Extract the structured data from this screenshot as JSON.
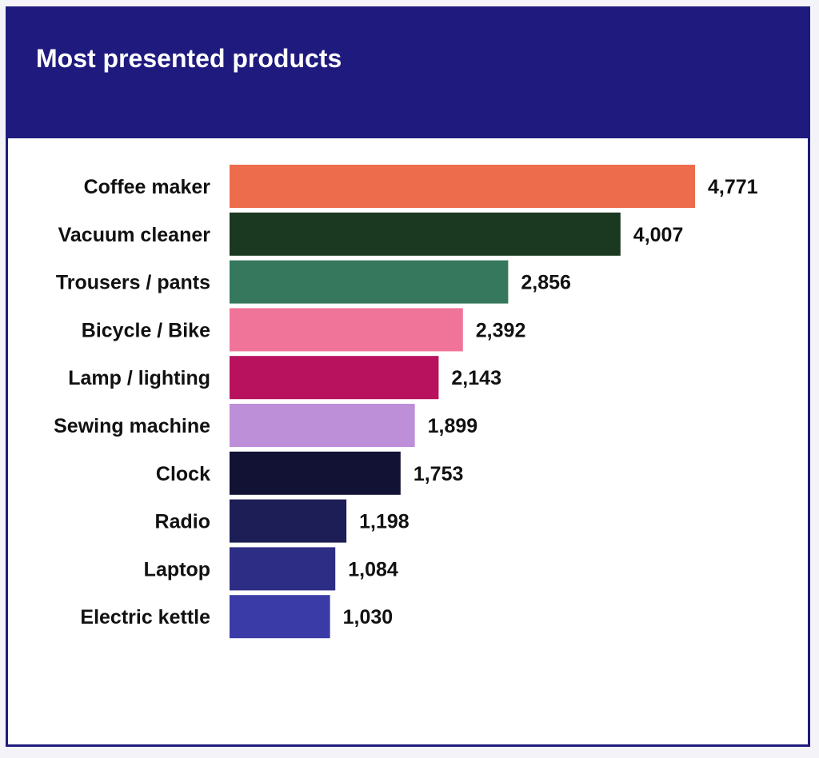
{
  "header": {
    "title": "Most presented products"
  },
  "colors": {
    "header_bg": "#1f1a7e",
    "card_bg": "#ffffff"
  },
  "chart_data": {
    "type": "bar",
    "orientation": "horizontal",
    "title": "Most presented products",
    "xlabel": "",
    "ylabel": "",
    "grid": false,
    "categories": [
      "Coffee maker",
      "Vacuum cleaner",
      "Trousers / pants",
      "Bicycle / Bike",
      "Lamp / lighting",
      "Sewing machine",
      "Clock",
      "Radio",
      "Laptop",
      "Electric kettle"
    ],
    "values": [
      4771,
      4007,
      2856,
      2392,
      2143,
      1899,
      1753,
      1198,
      1084,
      1030
    ],
    "value_labels": [
      "4,771",
      "4,007",
      "2,856",
      "2,392",
      "2,143",
      "1,899",
      "1,753",
      "1,198",
      "1,084",
      "1,030"
    ],
    "bar_colors": [
      "#ec6c4c",
      "#1b3821",
      "#35785e",
      "#f07499",
      "#b8125e",
      "#bd8fd9",
      "#121235",
      "#1c1e55",
      "#2e2d86",
      "#3b3ba8"
    ],
    "xlim": [
      0,
      4771
    ]
  }
}
